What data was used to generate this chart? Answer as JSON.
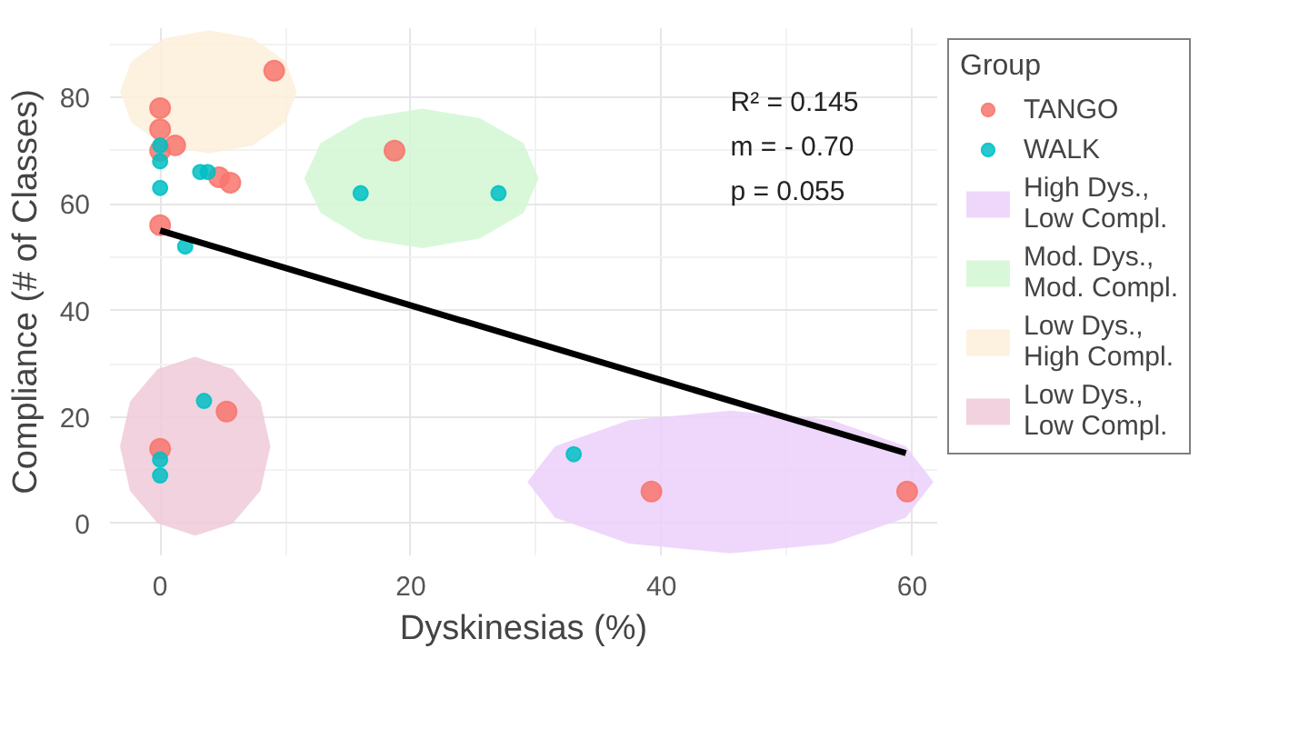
{
  "chart_data": {
    "type": "scatter",
    "xlabel": "Dyskinesias (%)",
    "ylabel": "Compliance (# of Classes)",
    "legend_title": "Group",
    "xlim": [
      -4,
      62
    ],
    "ylim": [
      -6,
      93
    ],
    "xticks": [
      0,
      20,
      40,
      60
    ],
    "yticks": [
      0,
      20,
      40,
      60,
      80
    ],
    "grid": true,
    "legend": "right",
    "annotations": [
      "R² = 0.145",
      "m = - 0.70",
      "p = 0.055"
    ],
    "series": [
      {
        "type": "area",
        "name": "High Dys., Low Compl.",
        "color": "#ecd0fb",
        "x": [
          61.7,
          59.5,
          53.6,
          45.5,
          37.4,
          31.5,
          29.3,
          31.5,
          37.4,
          45.5,
          53.6,
          59.5
        ],
        "values": [
          7.8,
          14.5,
          19.4,
          21.2,
          19.4,
          14.5,
          7.8,
          1.1,
          -3.8,
          -5.6,
          -3.8,
          1.1
        ]
      },
      {
        "type": "area",
        "name": "Mod. Dys., Mod. Compl.",
        "color": "#d2f7d2",
        "x": [
          30.2,
          29.0,
          25.5,
          20.9,
          16.2,
          12.8,
          11.5,
          12.8,
          16.2,
          20.9,
          25.5,
          29.0
        ],
        "values": [
          64.8,
          71.4,
          76.1,
          77.9,
          76.1,
          71.4,
          64.8,
          58.3,
          53.5,
          51.7,
          53.5,
          58.3
        ]
      },
      {
        "type": "area",
        "name": "Low Dys., High Compl.",
        "color": "#fdeedb",
        "x": [
          10.9,
          10.0,
          7.4,
          3.9,
          0.3,
          -2.3,
          -3.2,
          -2.3,
          0.3,
          3.9,
          7.4,
          10.0
        ],
        "values": [
          81.1,
          86.8,
          91.1,
          92.6,
          91.1,
          86.8,
          81.1,
          75.3,
          71.0,
          69.5,
          71.0,
          75.3
        ]
      },
      {
        "type": "area",
        "name": "Low Dys., Low Compl.",
        "color": "#efcad8",
        "x": [
          8.8,
          8.0,
          5.8,
          2.8,
          -0.2,
          -2.4,
          -3.2,
          -2.4,
          -0.2,
          2.8,
          5.8,
          8.0
        ],
        "values": [
          14.5,
          22.9,
          29.0,
          31.3,
          29.0,
          22.9,
          14.5,
          6.1,
          0.0,
          -2.3,
          0.0,
          6.1
        ]
      },
      {
        "type": "scatter",
        "marker": "circle",
        "name": "TANGO",
        "color": "#f8766d",
        "x": [
          0,
          0,
          0,
          1.2,
          9.1,
          4.7,
          5.6,
          0,
          18.7,
          5.3,
          0,
          39.2,
          59.6
        ],
        "values": [
          78,
          74,
          70,
          71,
          85,
          65,
          64,
          56,
          70,
          21,
          14,
          6,
          6
        ]
      },
      {
        "type": "scatter",
        "marker": "circle",
        "name": "WALK",
        "color": "#00bfc4",
        "x": [
          0,
          0,
          0,
          3.2,
          3.8,
          2.0,
          16,
          27,
          3.5,
          0,
          0,
          33
        ],
        "values": [
          71,
          68,
          63,
          66,
          66,
          52,
          62,
          62,
          23,
          12,
          9,
          13
        ]
      },
      {
        "type": "line",
        "color": "#000000",
        "x": [
          0,
          59.5
        ],
        "values": [
          55,
          13.2
        ]
      }
    ]
  }
}
